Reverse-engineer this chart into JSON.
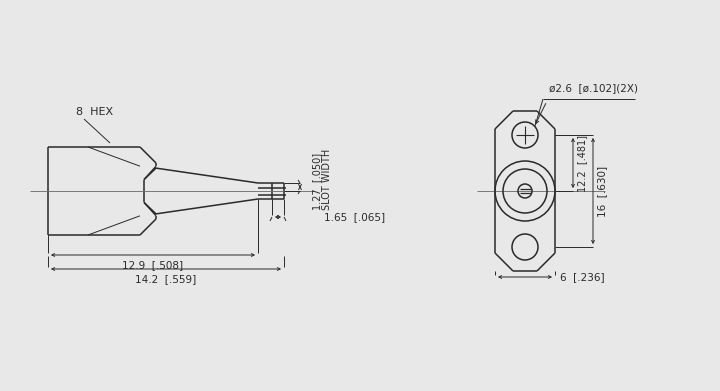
{
  "bg_color": "#e8e8e8",
  "line_color": "#2a2a2a",
  "dim_color": "#2a2a2a",
  "text_color": "#2a2a2a",
  "lw": 1.1,
  "thin_lw": 0.7,
  "dim_lw": 0.7,
  "annotations": {
    "hex_label": "8  HEX",
    "slot_width": "SLOT WIDTH",
    "slot_val": "1.27  [.050]",
    "dim_1": "1.65  [.065]",
    "dim_2": "12.9  [.508]",
    "dim_3": "14.2  [.559]",
    "dim_4": "ø2.6  [ø.102](2X)",
    "dim_5": "12.2  [.481]",
    "dim_6": "16  [.630]",
    "dim_7": "6  [.236]"
  }
}
